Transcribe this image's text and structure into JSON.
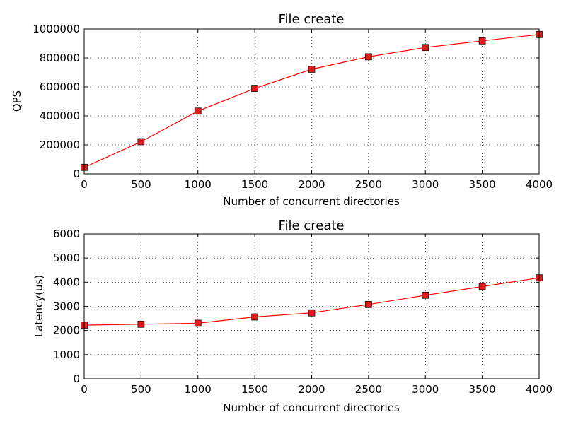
{
  "chart_data": [
    {
      "type": "line",
      "title": "File create",
      "xlabel": "Number of concurrent directories",
      "ylabel": "QPS",
      "xlim": [
        0,
        4000
      ],
      "ylim": [
        0,
        1000000
      ],
      "xticks": [
        "0",
        "500",
        "1000",
        "1500",
        "2000",
        "2500",
        "3000",
        "3500",
        "4000"
      ],
      "yticks": [
        "0",
        "200000",
        "400000",
        "600000",
        "800000",
        "1000000"
      ],
      "grid": true,
      "line_color": "#ff0000",
      "marker_color": "#e31a1c",
      "series": [
        {
          "x": [
            0,
            500,
            1000,
            1500,
            2000,
            2500,
            3000,
            3500,
            4000
          ],
          "values": [
            45000,
            222000,
            433000,
            590000,
            722000,
            808000,
            872000,
            918000,
            962000
          ]
        }
      ]
    },
    {
      "type": "line",
      "title": "File create",
      "xlabel": "Number of concurrent directories",
      "ylabel": "Latency(us)",
      "xlim": [
        0,
        4000
      ],
      "ylim": [
        0,
        6000
      ],
      "xticks": [
        "0",
        "500",
        "1000",
        "1500",
        "2000",
        "2500",
        "3000",
        "3500",
        "4000"
      ],
      "yticks": [
        "0",
        "1000",
        "2000",
        "3000",
        "4000",
        "5000",
        "6000"
      ],
      "grid": true,
      "line_color": "#ff0000",
      "marker_color": "#e31a1c",
      "series": [
        {
          "x": [
            0,
            500,
            1000,
            1500,
            2000,
            2500,
            3000,
            3500,
            4000
          ],
          "values": [
            2220,
            2260,
            2300,
            2560,
            2730,
            3080,
            3460,
            3820,
            4180
          ]
        }
      ]
    }
  ]
}
